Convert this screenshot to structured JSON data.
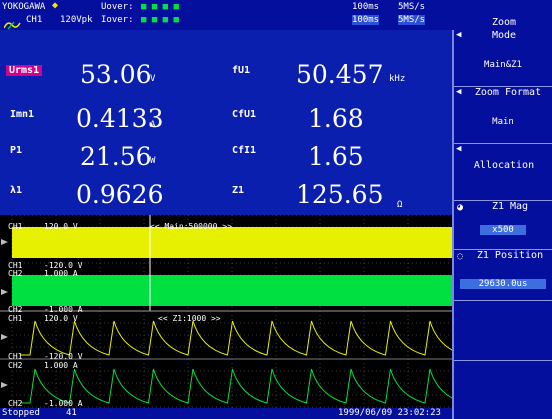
{
  "header": {
    "brand": "YOKOGAWA",
    "channel": "CH1",
    "range": "120Vpk",
    "uover_label": "Uover:",
    "iover_label": "Iover:",
    "indicators": "■ ■ ■ ■",
    "update_rate_1": "100ms",
    "sample_rate_1": "5MS/s",
    "update_rate_2": "100ms",
    "sample_rate_2": "5MS/s"
  },
  "measurements": [
    {
      "label": "Urms1",
      "value": "53.06",
      "unit": "V"
    },
    {
      "label": "Imn1",
      "value": "0.4133",
      "unit": "A"
    },
    {
      "label": "P1",
      "value": "21.56",
      "unit": "W"
    },
    {
      "label": "λ1",
      "value": "0.9626",
      "unit": ""
    },
    {
      "label": "fU1",
      "value": "50.457",
      "unit": "kHz"
    },
    {
      "label": "CfU1",
      "value": "1.68",
      "unit": ""
    },
    {
      "label": "CfI1",
      "value": "1.65",
      "unit": ""
    },
    {
      "label": "Z1",
      "value": "125.65",
      "unit": "Ω"
    }
  ],
  "waveform": {
    "labels": {
      "ch1_top": "CH1",
      "ch1_top_scale": "120.0 V",
      "main_info": "<< Main:500000 >>",
      "ch1_bot": "CH1",
      "ch1_bot_scale": "-120.0 V",
      "ch2_top": "CH2",
      "ch2_top_scale": "1.000 A",
      "ch2_bot": "CH2",
      "ch2_bot_scale": "-1.000 A",
      "z_ch1_top": "CH1",
      "z_ch1_top_scale": "120.0 V",
      "z_info": "<< Z1:1000 >>",
      "z_ch1_bot": "CH1",
      "z_ch1_bot_scale": "-120.0 V",
      "z_ch2_top": "CH2",
      "z_ch2_top_scale": "1.000 A",
      "z_ch2_bot": "CH2",
      "z_ch2_bot_scale": "-1.000 A"
    },
    "colors": {
      "ch1": "#e6f000",
      "ch2": "#00e040"
    }
  },
  "status": {
    "state": "Stopped",
    "count": "41",
    "datetime": "1999/06/09 23:02:23"
  },
  "menu": {
    "title": "Zoom",
    "mode_title": "Mode",
    "mode_value": "Main&Z1",
    "format_title": "Zoom Format",
    "format_value": "Main",
    "allocation_title": "Allocation",
    "mag_title": "Z1 Mag",
    "mag_value": "x500",
    "position_title": "Z1 Position",
    "position_value": "29630.0us"
  }
}
